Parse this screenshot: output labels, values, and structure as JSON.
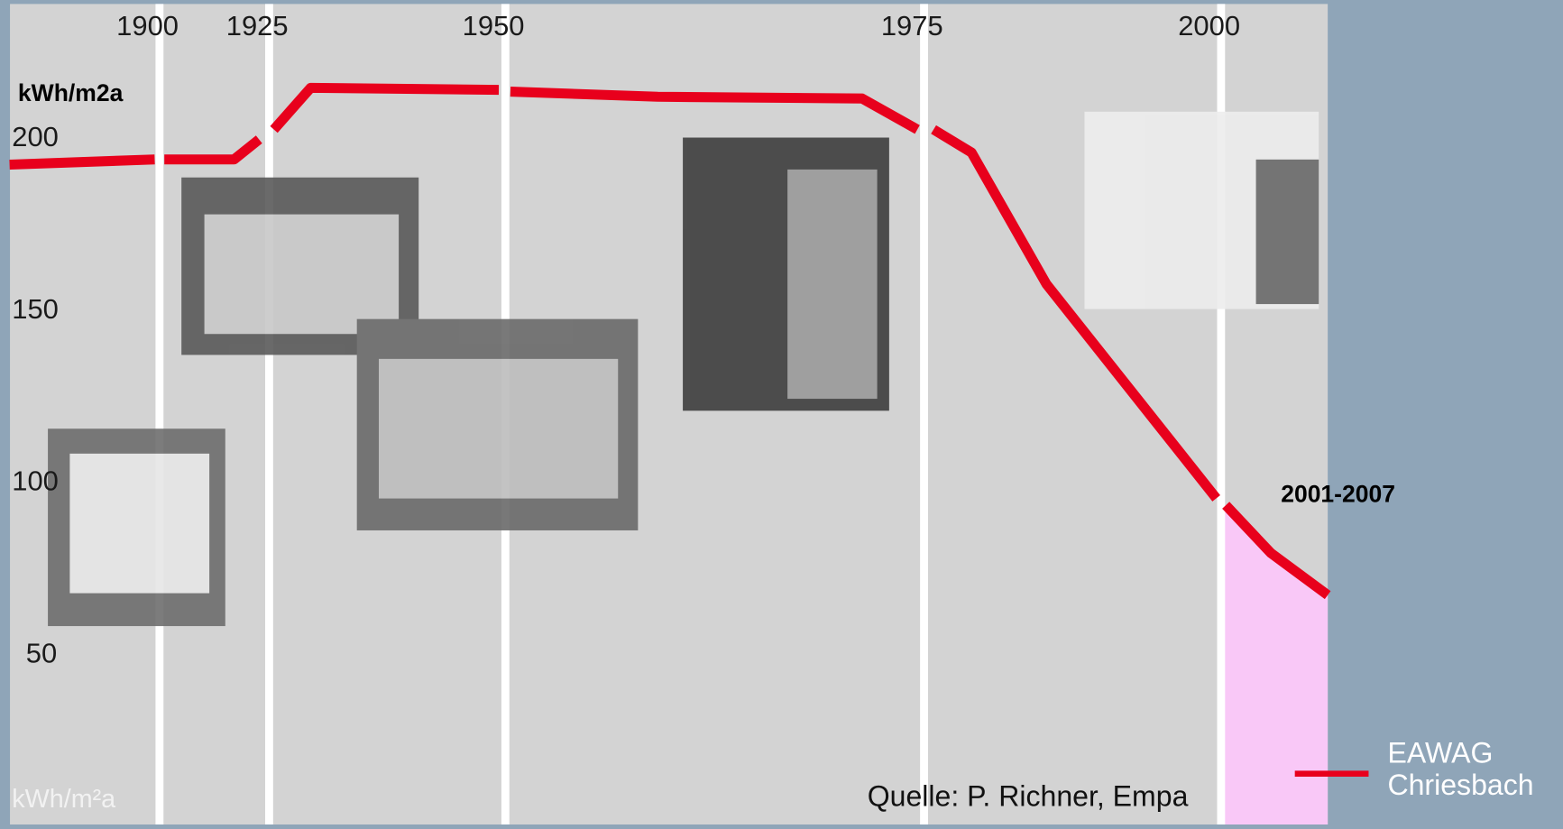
{
  "chart_data": {
    "type": "line",
    "y_label": "kWh/m2a",
    "unit_label": "kWh/m²a",
    "source": "Quelle: P. Richner, Empa",
    "annotation": "2001-2007",
    "highlight": {
      "color": "#f9c8f7",
      "xrange": [
        2000,
        2009
      ]
    },
    "x": [
      1865.9,
      1898.9,
      null,
      1901.1,
      1917,
      1922.7,
      null,
      1925.5,
      1929.4,
      1949.3,
      null,
      1950.3,
      1959.1,
      1971.3,
      1974.6,
      null,
      1975.8,
      1979,
      1985.3,
      1999.6,
      null,
      2000.4,
      2004.2,
      2009
    ],
    "series": [
      {
        "name": "EAWAG Chriesbach",
        "color": "#e8001c",
        "values": [
          192.2,
          193.7,
          null,
          193.7,
          193.7,
          199.5,
          null,
          202.4,
          214.5,
          213.9,
          null,
          213.4,
          211.9,
          211.4,
          202.4,
          null,
          202.4,
          195.7,
          157.5,
          95.3,
          null,
          93.3,
          79.4,
          67.2
        ]
      }
    ],
    "xlim": [
      1866,
      2009
    ],
    "xticks": [
      1900,
      1925,
      1950,
      1975,
      2000
    ],
    "ylim": [
      0,
      240
    ],
    "yticks": [
      50,
      100,
      150,
      200
    ],
    "grid": true
  }
}
